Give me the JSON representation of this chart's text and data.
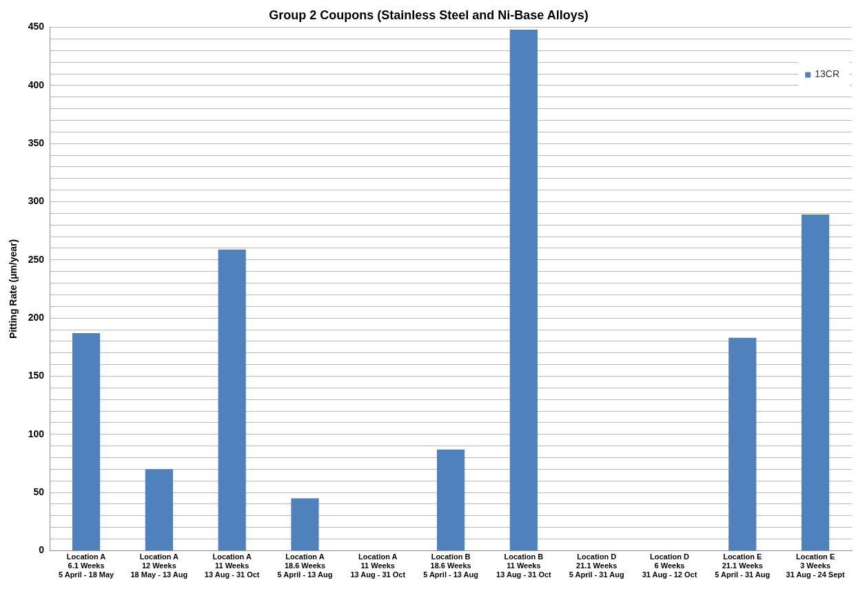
{
  "chart_data": {
    "type": "bar",
    "title": "Group 2 Coupons (Stainless Steel and Ni-Base Alloys)",
    "ylabel": "Pitting Rate (µm/year)",
    "categories": [
      "Location A\n6.1 Weeks\n5 April - 18 May",
      "Location A\n12 Weeks\n18 May - 13 Aug",
      "Location A\n11 Weeks\n13 Aug - 31 Oct",
      "Location A\n18.6 Weeks\n5 April - 13 Aug",
      "Location A\n11 Weeks\n13 Aug - 31 Oct",
      "Location B\n18.6 Weeks\n5 April - 13 Aug",
      "Location B\n11 Weeks\n13 Aug - 31 Oct",
      "Location D\n21.1 Weeks\n5 April - 31 Aug",
      "Location D\n6 Weeks\n31 Aug - 12 Oct",
      "Location E\n21.1 Weeks\n5 April - 31 Aug",
      "Location E\n3 Weeks\n31 Aug - 24 Sept"
    ],
    "series": [
      {
        "name": "13CR",
        "color": "#4f81bd",
        "values": [
          187,
          70,
          259,
          45,
          null,
          87,
          448,
          null,
          null,
          183,
          289
        ]
      }
    ],
    "ylim": [
      0,
      450
    ],
    "yticks": [
      0,
      {
        "value": 10,
        "label": null
      },
      {
        "value": 20,
        "label": null
      },
      {
        "value": 30,
        "label": null
      },
      {
        "value": 40,
        "label": null
      },
      50,
      {
        "value": 60,
        "label": null
      },
      {
        "value": 70,
        "label": null
      },
      {
        "value": 80,
        "label": null
      },
      {
        "value": 90,
        "label": null
      },
      100,
      {
        "value": 110,
        "label": null
      },
      {
        "value": 120,
        "label": null
      },
      {
        "value": 130,
        "label": null
      },
      {
        "value": 140,
        "label": null
      },
      150,
      {
        "value": 160,
        "label": null
      },
      {
        "value": 170,
        "label": null
      },
      {
        "value": 180,
        "label": null
      },
      {
        "value": 190,
        "label": null
      },
      200,
      {
        "value": 210,
        "label": null
      },
      {
        "value": 220,
        "label": null
      },
      {
        "value": 230,
        "label": null
      },
      {
        "value": 240,
        "label": null
      },
      250,
      {
        "value": 260,
        "label": null
      },
      {
        "value": 270,
        "label": null
      },
      {
        "value": 280,
        "label": null
      },
      {
        "value": 290,
        "label": null
      },
      300,
      {
        "value": 310,
        "label": null
      },
      {
        "value": 320,
        "label": null
      },
      {
        "value": 330,
        "label": null
      },
      {
        "value": 340,
        "label": null
      },
      350,
      {
        "value": 360,
        "label": null
      },
      {
        "value": 370,
        "label": null
      },
      {
        "value": 380,
        "label": null
      },
      {
        "value": 390,
        "label": null
      },
      400,
      {
        "value": 410,
        "label": null
      },
      {
        "value": 420,
        "label": null
      },
      {
        "value": 430,
        "label": null
      },
      {
        "value": 440,
        "label": null
      },
      450
    ],
    "grid": "y",
    "legend": "top right"
  }
}
